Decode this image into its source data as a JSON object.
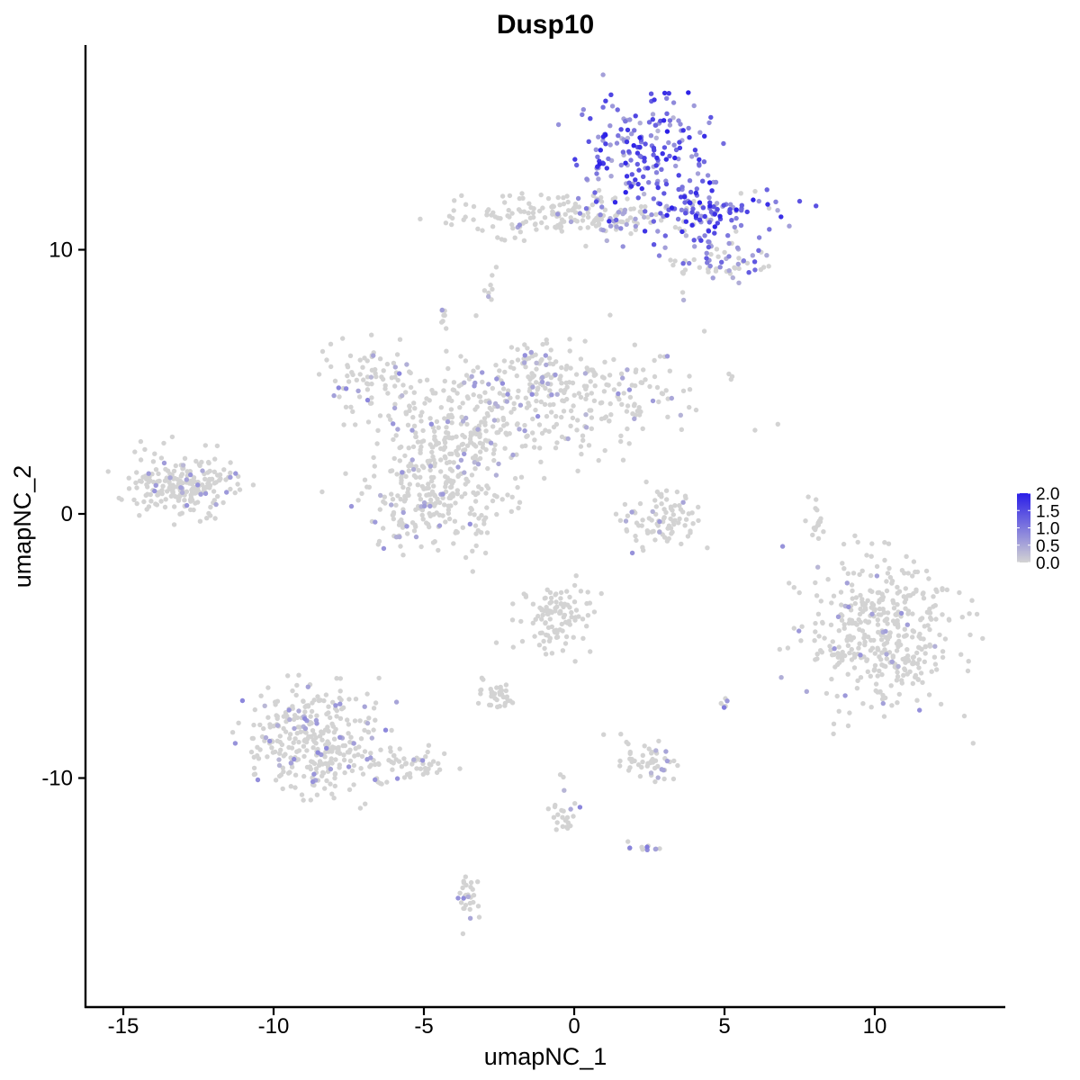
{
  "chart_data": {
    "type": "scatter",
    "title": "Dusp10",
    "xlabel": "umapNC_1",
    "ylabel": "umapNC_2",
    "xlim": [
      -16.5,
      14.5
    ],
    "ylim": [
      -18.5,
      17.5
    ],
    "x_ticks": [
      -15,
      -10,
      -5,
      0,
      5,
      10
    ],
    "x_tick_labels": [
      "-15",
      "-10",
      "-5",
      "0",
      "5",
      "10"
    ],
    "y_ticks": [
      -10,
      0,
      10
    ],
    "y_tick_labels": [
      "-10",
      "0",
      "10"
    ],
    "grid": false,
    "legend": {
      "placement": "right",
      "type": "colorbar",
      "min": 0.0,
      "max": 2.0,
      "ticks": [
        0.0,
        0.5,
        1.0,
        1.5,
        2.0
      ],
      "tick_labels": [
        "0.0",
        "0.5",
        "1.0",
        "1.5",
        "2.0"
      ],
      "low_color": "#d3d3d3",
      "high_color": "#2a1ee8"
    },
    "point_color_low": "#d3d3d3",
    "point_color_high": "#2a1ee8",
    "clusters": [
      {
        "name": "top-right-high",
        "cx": 2.3,
        "cy": 13.7,
        "sx": 1.1,
        "sy": 1.1,
        "n": 200,
        "expr": 1.0
      },
      {
        "name": "top-right-arm",
        "cx": 4.3,
        "cy": 11.4,
        "sx": 1.1,
        "sy": 0.45,
        "n": 120,
        "expr": 0.8
      },
      {
        "name": "top-right-tail",
        "cx": 4.7,
        "cy": 9.6,
        "sx": 0.9,
        "sy": 0.5,
        "n": 70,
        "expr": 0.45
      },
      {
        "name": "top-band",
        "cx": -1.3,
        "cy": 11.3,
        "sx": 1.6,
        "sy": 0.45,
        "n": 130,
        "expr": 0.05
      },
      {
        "name": "top-band-mid",
        "cx": 1.2,
        "cy": 11.2,
        "sx": 0.9,
        "sy": 0.35,
        "n": 50,
        "expr": 0.25
      },
      {
        "name": "center-star-core",
        "cx": -3.5,
        "cy": 3.3,
        "sx": 1.4,
        "sy": 1.2,
        "n": 260,
        "expr": 0.08
      },
      {
        "name": "center-star-right",
        "cx": 0.5,
        "cy": 4.3,
        "sx": 1.9,
        "sy": 0.9,
        "n": 220,
        "expr": 0.07
      },
      {
        "name": "center-star-left",
        "cx": -6.8,
        "cy": 5.1,
        "sx": 0.7,
        "sy": 0.7,
        "n": 70,
        "expr": 0.15
      },
      {
        "name": "center-star-bottom",
        "cx": -4.7,
        "cy": 0.6,
        "sx": 1.2,
        "sy": 0.9,
        "n": 240,
        "expr": 0.1
      },
      {
        "name": "center-star-top",
        "cx": -1.3,
        "cy": 5.6,
        "sx": 0.6,
        "sy": 0.6,
        "n": 50,
        "expr": 0.08
      },
      {
        "name": "left-cluster",
        "cx": -13.0,
        "cy": 1.1,
        "sx": 0.9,
        "sy": 0.55,
        "n": 220,
        "expr": 0.07
      },
      {
        "name": "crescent",
        "cx": 2.9,
        "cy": -0.3,
        "sx": 0.65,
        "sy": 0.5,
        "n": 90,
        "expr": 0.05
      },
      {
        "name": "right-blob",
        "cx": 10.2,
        "cy": -4.6,
        "sx": 1.2,
        "sy": 1.35,
        "n": 420,
        "expr": 0.07
      },
      {
        "name": "bottom-left-blob",
        "cx": -8.7,
        "cy": -8.6,
        "sx": 1.1,
        "sy": 1.1,
        "n": 330,
        "expr": 0.12
      },
      {
        "name": "bottom-left-tail",
        "cx": -5.9,
        "cy": -9.5,
        "sx": 0.8,
        "sy": 0.35,
        "n": 60,
        "expr": 0.06
      },
      {
        "name": "center-lower-blob",
        "cx": -0.6,
        "cy": -3.9,
        "sx": 0.6,
        "sy": 0.65,
        "n": 110,
        "expr": 0.0
      },
      {
        "name": "small-cluster-left",
        "cx": -2.5,
        "cy": -6.9,
        "sx": 0.35,
        "sy": 0.25,
        "n": 35,
        "expr": 0.0
      },
      {
        "name": "small-cluster-mid",
        "cx": 2.5,
        "cy": -9.3,
        "sx": 0.45,
        "sy": 0.45,
        "n": 50,
        "expr": 0.06
      },
      {
        "name": "strand-bottom",
        "cx": -3.5,
        "cy": -14.6,
        "sx": 0.2,
        "sy": 0.6,
        "n": 30,
        "expr": 0.1
      },
      {
        "name": "strand-mid",
        "cx": -0.3,
        "cy": -11.3,
        "sx": 0.3,
        "sy": 0.6,
        "n": 25,
        "expr": 0.15
      },
      {
        "name": "strand-right",
        "cx": 8.1,
        "cy": -0.3,
        "sx": 0.15,
        "sy": 0.6,
        "n": 18,
        "expr": 0.0
      },
      {
        "name": "small-topleft",
        "cx": -4.4,
        "cy": 7.4,
        "sx": 0.12,
        "sy": 0.2,
        "n": 8,
        "expr": 0.35
      },
      {
        "name": "small-mid-right",
        "cx": 5.0,
        "cy": -7.2,
        "sx": 0.1,
        "sy": 0.15,
        "n": 6,
        "expr": 0.4
      },
      {
        "name": "small-lower-right",
        "cx": 2.3,
        "cy": -12.6,
        "sx": 0.3,
        "sy": 0.15,
        "n": 12,
        "expr": 0.25
      },
      {
        "name": "small-topband-left",
        "cx": -2.8,
        "cy": 8.6,
        "sx": 0.15,
        "sy": 0.3,
        "n": 8,
        "expr": 0.2
      }
    ]
  }
}
